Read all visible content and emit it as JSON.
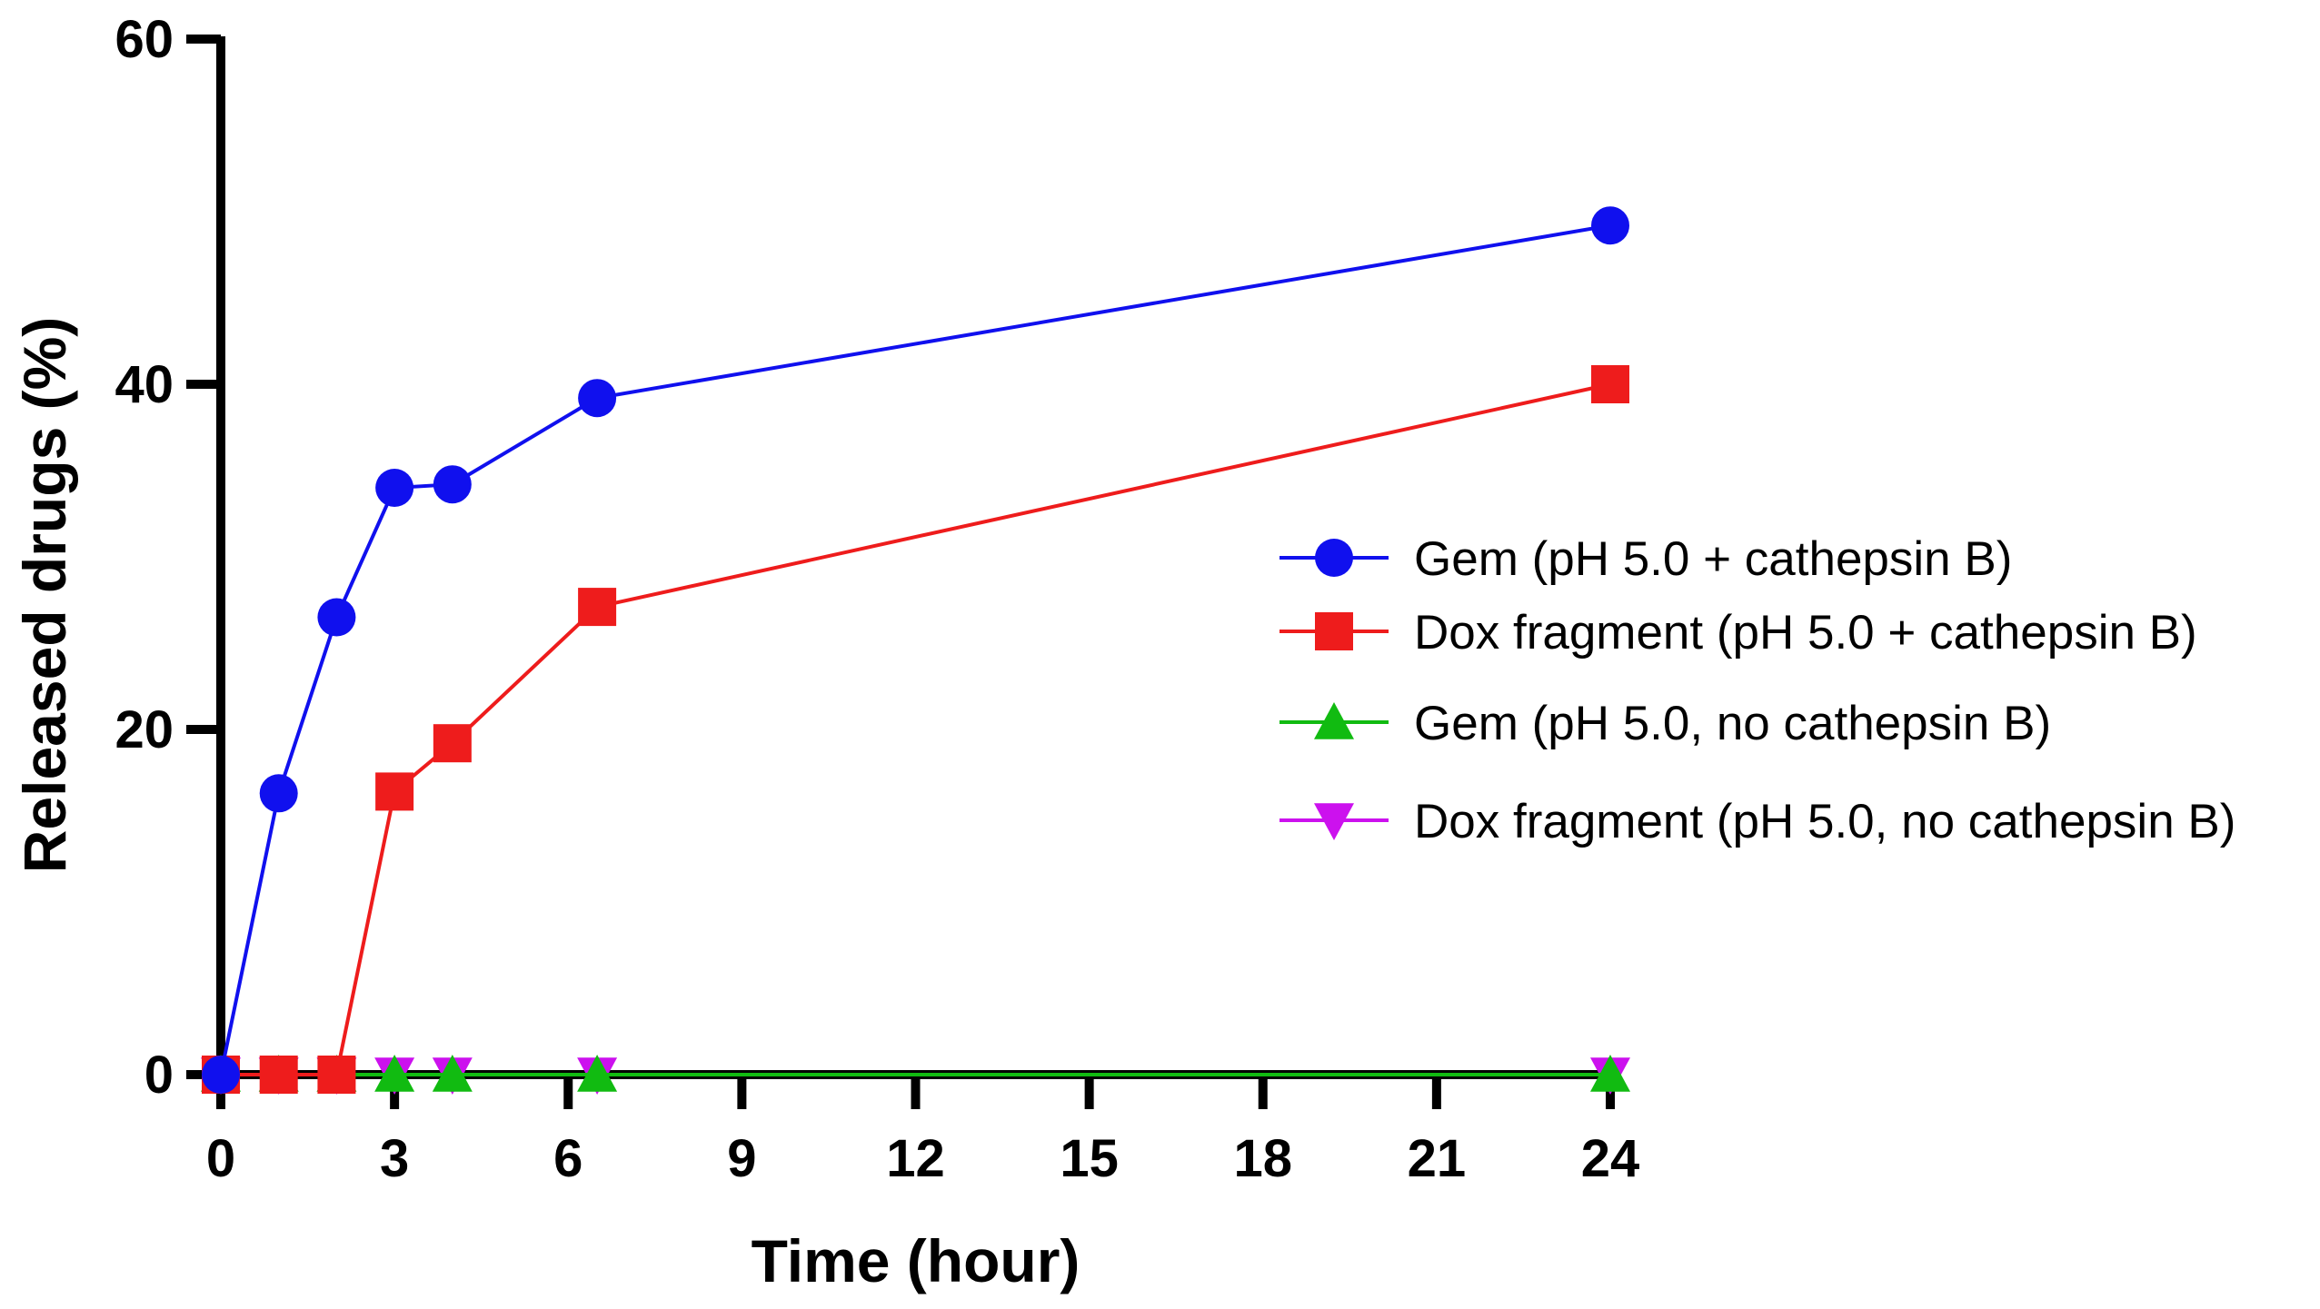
{
  "chart_data": {
    "type": "line",
    "title": "",
    "xlabel": "Time (hour)",
    "ylabel": "Released drugs (%)",
    "x_ticks": [
      "0",
      "3",
      "6",
      "9",
      "12",
      "15",
      "18",
      "21",
      "24"
    ],
    "y_ticks": [
      "0",
      "20",
      "40",
      "60"
    ],
    "xlim": [
      0,
      24
    ],
    "ylim": [
      0,
      60
    ],
    "grid": false,
    "legend_position": "right",
    "series": [
      {
        "name": "Gem (pH 5.0 + cathepsin B)",
        "color": "#1010ee",
        "marker": "circle",
        "x": [
          0,
          1,
          2,
          3,
          4,
          6.5,
          24
        ],
        "y": [
          0,
          16.3,
          26.5,
          34.0,
          34.2,
          39.2,
          49.2
        ]
      },
      {
        "name": "Dox fragment (pH 5.0 + cathepsin B)",
        "color": "#ee1c1c",
        "marker": "square",
        "x": [
          0,
          1,
          2,
          3,
          4,
          6.5,
          24
        ],
        "y": [
          0,
          0,
          0,
          16.4,
          19.2,
          27.1,
          40.0
        ]
      },
      {
        "name": "Gem (pH 5.0, no cathepsin B)",
        "color": "#11bb11",
        "marker": "triangle-up",
        "x": [
          0,
          1,
          2,
          3,
          4,
          6.5,
          24
        ],
        "y": [
          0,
          0,
          0,
          0,
          0,
          0,
          0
        ]
      },
      {
        "name": "Dox fragment (pH 5.0, no cathepsin B)",
        "color": "#cc11ee",
        "marker": "triangle-down",
        "x": [
          0,
          1,
          2,
          3,
          4,
          6.5,
          24
        ],
        "y": [
          0,
          0,
          0,
          0,
          0,
          0,
          0
        ]
      }
    ]
  }
}
